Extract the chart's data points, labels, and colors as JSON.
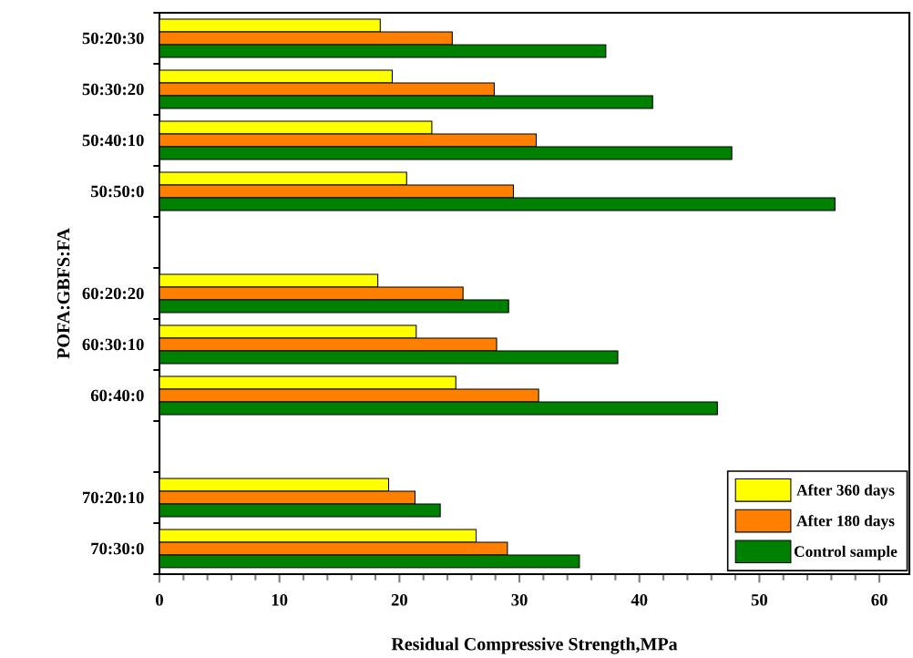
{
  "chart_data": {
    "type": "bar",
    "orientation": "horizontal",
    "xlabel": "Residual Compressive Strength,MPa",
    "ylabel": "POFA:GBFS:FA",
    "categories": [
      "50:20:30",
      "50:30:20",
      "50:40:10",
      "50:50:0",
      null,
      "60:20:20",
      "60:30:10",
      "60:40:0",
      null,
      "70:20:10",
      "70:30:0"
    ],
    "series": [
      {
        "name": "After 360 days",
        "color": "#ffff00",
        "values": [
          18.4,
          19.4,
          22.7,
          20.6,
          null,
          18.2,
          21.4,
          24.7,
          null,
          19.1,
          26.4
        ]
      },
      {
        "name": "After 180 days",
        "color": "#ff8000",
        "values": [
          24.4,
          27.9,
          31.4,
          29.5,
          null,
          25.3,
          28.1,
          31.6,
          null,
          21.3,
          29.0
        ]
      },
      {
        "name": "Control sample",
        "color": "#008000",
        "values": [
          37.2,
          41.1,
          47.7,
          56.3,
          null,
          29.1,
          38.2,
          46.5,
          null,
          23.4,
          35.0
        ]
      }
    ],
    "xlim": [
      0,
      62.5
    ],
    "xticks": [
      0,
      10,
      20,
      30,
      40,
      50,
      60
    ],
    "legend": "bottom right"
  }
}
